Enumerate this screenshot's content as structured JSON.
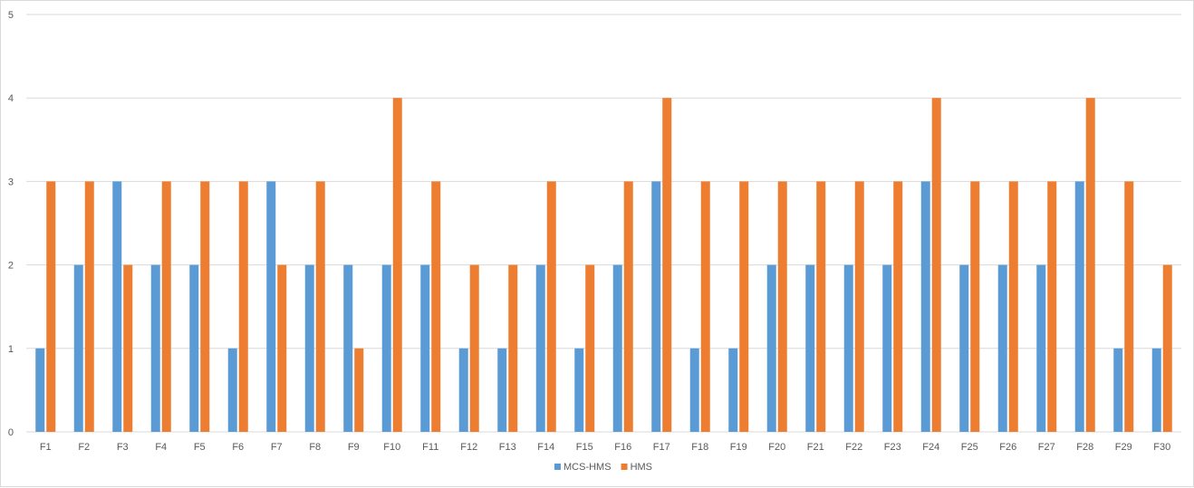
{
  "chart_data": {
    "type": "bar",
    "title": "",
    "xlabel": "",
    "ylabel": "",
    "ylim": [
      0,
      5
    ],
    "yticks": [
      "0",
      "1",
      "2",
      "3",
      "4",
      "5"
    ],
    "grid": "horizontal",
    "legend_position": "bottom",
    "categories": [
      "F1",
      "F2",
      "F3",
      "F4",
      "F5",
      "F6",
      "F7",
      "F8",
      "F9",
      "F10",
      "F11",
      "F12",
      "F13",
      "F14",
      "F15",
      "F16",
      "F17",
      "F18",
      "F19",
      "F20",
      "F21",
      "F22",
      "F23",
      "F24",
      "F25",
      "F26",
      "F27",
      "F28",
      "F29",
      "F30"
    ],
    "series": [
      {
        "name": "MCS-HMS",
        "color": "#5b9bd5",
        "values": [
          1,
          2,
          3,
          2,
          2,
          1,
          3,
          2,
          2,
          2,
          2,
          1,
          1,
          2,
          1,
          2,
          3,
          1,
          1,
          2,
          2,
          2,
          2,
          3,
          2,
          2,
          2,
          3,
          1,
          1
        ]
      },
      {
        "name": "HMS",
        "color": "#ed7d31",
        "values": [
          3,
          3,
          2,
          3,
          3,
          3,
          2,
          3,
          1,
          4,
          3,
          2,
          2,
          3,
          2,
          3,
          4,
          3,
          3,
          3,
          3,
          3,
          3,
          4,
          3,
          3,
          3,
          4,
          3,
          2
        ]
      }
    ]
  }
}
